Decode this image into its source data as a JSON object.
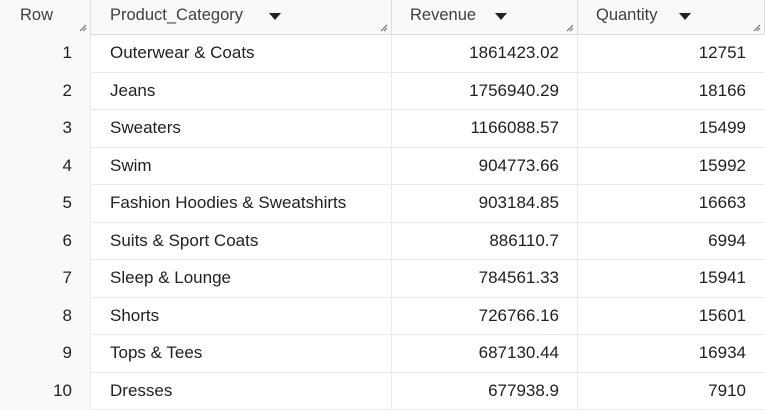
{
  "table": {
    "headers": {
      "row": "Row",
      "category": "Product_Category",
      "revenue": "Revenue",
      "quantity": "Quantity"
    },
    "rows": [
      {
        "row": "1",
        "category": "Outerwear & Coats",
        "revenue": "1861423.02",
        "quantity": "12751"
      },
      {
        "row": "2",
        "category": "Jeans",
        "revenue": "1756940.29",
        "quantity": "18166"
      },
      {
        "row": "3",
        "category": "Sweaters",
        "revenue": "1166088.57",
        "quantity": "15499"
      },
      {
        "row": "4",
        "category": "Swim",
        "revenue": "904773.66",
        "quantity": "15992"
      },
      {
        "row": "5",
        "category": "Fashion Hoodies & Sweatshirts",
        "revenue": "903184.85",
        "quantity": "16663"
      },
      {
        "row": "6",
        "category": "Suits & Sport Coats",
        "revenue": "886110.7",
        "quantity": "6994"
      },
      {
        "row": "7",
        "category": "Sleep & Lounge",
        "revenue": "784561.33",
        "quantity": "15941"
      },
      {
        "row": "8",
        "category": "Shorts",
        "revenue": "726766.16",
        "quantity": "15601"
      },
      {
        "row": "9",
        "category": "Tops & Tees",
        "revenue": "687130.44",
        "quantity": "16934"
      },
      {
        "row": "10",
        "category": "Dresses",
        "revenue": "677938.9",
        "quantity": "7910"
      }
    ]
  },
  "icons": {
    "sort": "sort-dropdown-icon",
    "resize": "column-resize-handle-icon"
  },
  "colors": {
    "header_bg": "#f8f9fa",
    "border": "#dadce0",
    "text": "#202124"
  }
}
